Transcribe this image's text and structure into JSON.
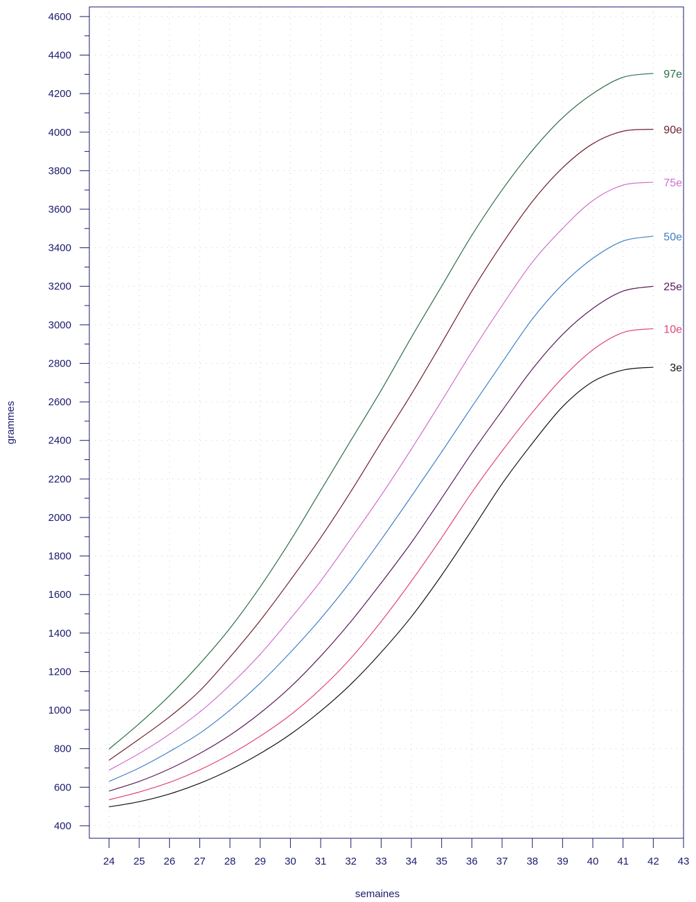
{
  "chart_data": {
    "type": "line",
    "title": "",
    "xlabel": "semaines",
    "ylabel": "grammes",
    "xlim": [
      23.35,
      43
    ],
    "ylim": [
      335,
      4650
    ],
    "x_ticks": [
      24,
      25,
      26,
      27,
      28,
      29,
      30,
      31,
      32,
      33,
      34,
      35,
      36,
      37,
      38,
      39,
      40,
      41,
      42,
      43
    ],
    "y_ticks": [
      400,
      600,
      800,
      1000,
      1200,
      1400,
      1600,
      1800,
      2000,
      2200,
      2400,
      2600,
      2800,
      3000,
      3200,
      3400,
      3600,
      3800,
      4000,
      4200,
      4400,
      4600
    ],
    "grid": true,
    "x": [
      24,
      25,
      26,
      27,
      28,
      29,
      30,
      31,
      32,
      33,
      34,
      35,
      36,
      37,
      38,
      39,
      40,
      41,
      42
    ],
    "series": [
      {
        "name": "3e",
        "color": "#111111",
        "values": [
          498,
          525,
          565,
          620,
          690,
          775,
          875,
          995,
          1135,
          1300,
          1485,
          1700,
          1935,
          2175,
          2385,
          2575,
          2705,
          2765,
          2780
        ]
      },
      {
        "name": "10e",
        "color": "#e0457a",
        "values": [
          535,
          575,
          625,
          690,
          770,
          865,
          975,
          1110,
          1270,
          1460,
          1670,
          1895,
          2130,
          2345,
          2545,
          2725,
          2870,
          2960,
          2980
        ]
      },
      {
        "name": "25e",
        "color": "#5a1a5a",
        "values": [
          580,
          630,
          695,
          775,
          870,
          985,
          1120,
          1280,
          1460,
          1660,
          1870,
          2100,
          2335,
          2555,
          2770,
          2950,
          3085,
          3175,
          3200
        ]
      },
      {
        "name": "50e",
        "color": "#3f7fc4",
        "values": [
          630,
          700,
          785,
          880,
          1000,
          1140,
          1300,
          1475,
          1670,
          1885,
          2110,
          2340,
          2575,
          2805,
          3030,
          3210,
          3345,
          3435,
          3460
        ]
      },
      {
        "name": "75e",
        "color": "#d070d0",
        "values": [
          688,
          775,
          875,
          990,
          1130,
          1290,
          1475,
          1670,
          1890,
          2115,
          2355,
          2605,
          2860,
          3100,
          3325,
          3500,
          3645,
          3725,
          3740
        ]
      },
      {
        "name": "90e",
        "color": "#6e1f2b",
        "values": [
          740,
          850,
          965,
          1100,
          1275,
          1465,
          1675,
          1895,
          2135,
          2390,
          2640,
          2905,
          3175,
          3420,
          3640,
          3815,
          3940,
          4005,
          4015
        ]
      },
      {
        "name": "97e",
        "color": "#2a6e45",
        "values": [
          798,
          930,
          1075,
          1240,
          1425,
          1640,
          1880,
          2140,
          2400,
          2660,
          2935,
          3200,
          3465,
          3700,
          3905,
          4075,
          4200,
          4285,
          4305
        ]
      }
    ]
  }
}
